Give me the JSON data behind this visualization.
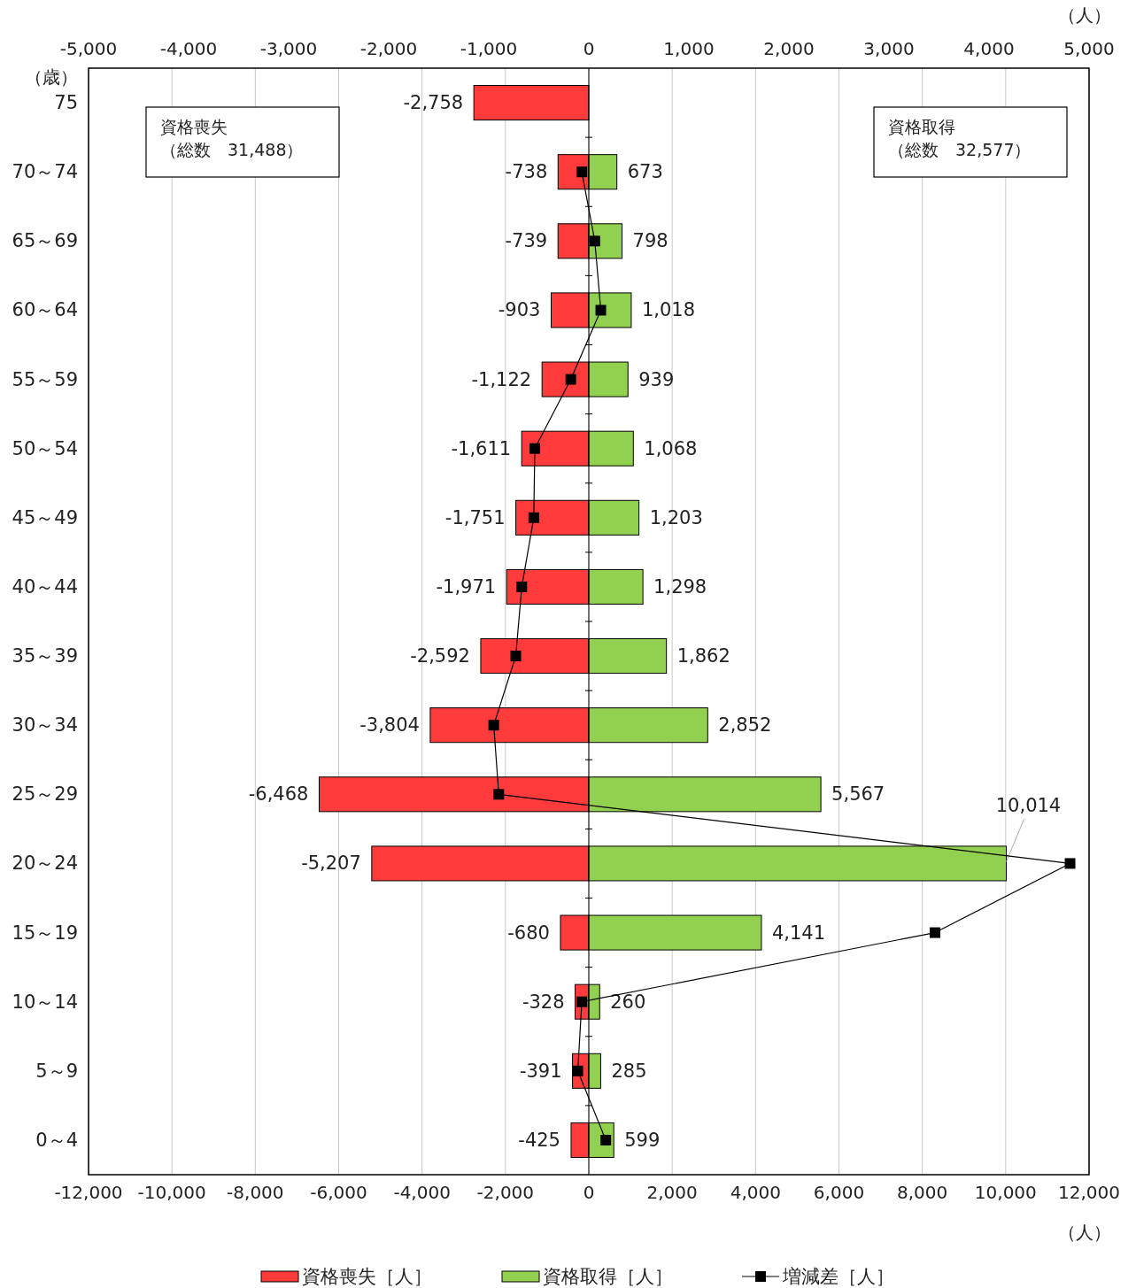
{
  "chart_data": {
    "type": "bar",
    "orientation": "horizontal",
    "stacked": true,
    "ylabel": "（歳）",
    "xlabel": "（人）",
    "x2label": "（人）",
    "categories": [
      "75",
      "70～74",
      "65～69",
      "60～64",
      "55～59",
      "50～54",
      "45～49",
      "40～44",
      "35～39",
      "30～34",
      "25～29",
      "20～24",
      "15～19",
      "10～14",
      "5～9",
      "0～4"
    ],
    "series": [
      {
        "name": "資格喪失［人］",
        "color": "#ff3b3b",
        "values": [
          -2758,
          -738,
          -739,
          -903,
          -1122,
          -1611,
          -1751,
          -1971,
          -2592,
          -3804,
          -6468,
          -5207,
          -680,
          -328,
          -391,
          -425
        ],
        "value_labels": [
          "-2,758",
          "-738",
          "-739",
          "-903",
          "-1,122",
          "-1,611",
          "-1,751",
          "-1,971",
          "-2,592",
          "-3,804",
          "-6,468",
          "-5,207",
          "-680",
          "-328",
          "-391",
          "-425"
        ]
      },
      {
        "name": "資格取得［人］",
        "color": "#92d050",
        "values": [
          null,
          673,
          798,
          1018,
          939,
          1068,
          1203,
          1298,
          1862,
          2852,
          5567,
          10014,
          4141,
          260,
          285,
          599
        ],
        "value_labels": [
          null,
          "673",
          "798",
          "1,018",
          "939",
          "1,068",
          "1,203",
          "1,298",
          "1,862",
          "2,852",
          "5,567",
          "10,014",
          "4,141",
          "260",
          "285",
          "599"
        ]
      },
      {
        "name": "増減差［人］",
        "type": "line",
        "axis": "x2",
        "marker": "square",
        "color": "#000000",
        "values": [
          null,
          -70,
          60,
          120,
          -180,
          -540,
          -550,
          -670,
          -730,
          -950,
          -900,
          4810,
          3460,
          -70,
          -110,
          170
        ]
      }
    ],
    "xlim": [
      -12000,
      12000
    ],
    "xticks": [
      {
        "value": -12000,
        "label": "-12,000"
      },
      {
        "value": -10000,
        "label": "-10,000"
      },
      {
        "value": -8000,
        "label": "-8,000"
      },
      {
        "value": -6000,
        "label": "-6,000"
      },
      {
        "value": -4000,
        "label": "-4,000"
      },
      {
        "value": -2000,
        "label": "-2,000"
      },
      0,
      {
        "value": 2000,
        "label": "2,000"
      },
      {
        "value": 4000,
        "label": "4,000"
      },
      {
        "value": 6000,
        "label": "6,000"
      },
      {
        "value": 8000,
        "label": "8,000"
      },
      {
        "value": 10000,
        "label": "10,000"
      },
      {
        "value": 12000,
        "label": "12,000"
      }
    ],
    "x2lim": [
      -5000,
      5000
    ],
    "x2ticks": [
      {
        "value": -5000,
        "label": "-5,000"
      },
      {
        "value": -4000,
        "label": "-4,000"
      },
      {
        "value": -3000,
        "label": "-3,000"
      },
      {
        "value": -2000,
        "label": "-2,000"
      },
      {
        "value": -1000,
        "label": "-1,000"
      },
      0,
      {
        "value": 1000,
        "label": "1,000"
      },
      {
        "value": 2000,
        "label": "2,000"
      },
      {
        "value": 3000,
        "label": "3,000"
      },
      {
        "value": 4000,
        "label": "4,000"
      },
      {
        "value": 5000,
        "label": "5,000"
      }
    ],
    "grid": "x",
    "legend": "bottom",
    "annotations": [
      "資格喪失",
      "（総数　31,488）",
      "資格取得",
      "（総数　32,577）"
    ]
  }
}
